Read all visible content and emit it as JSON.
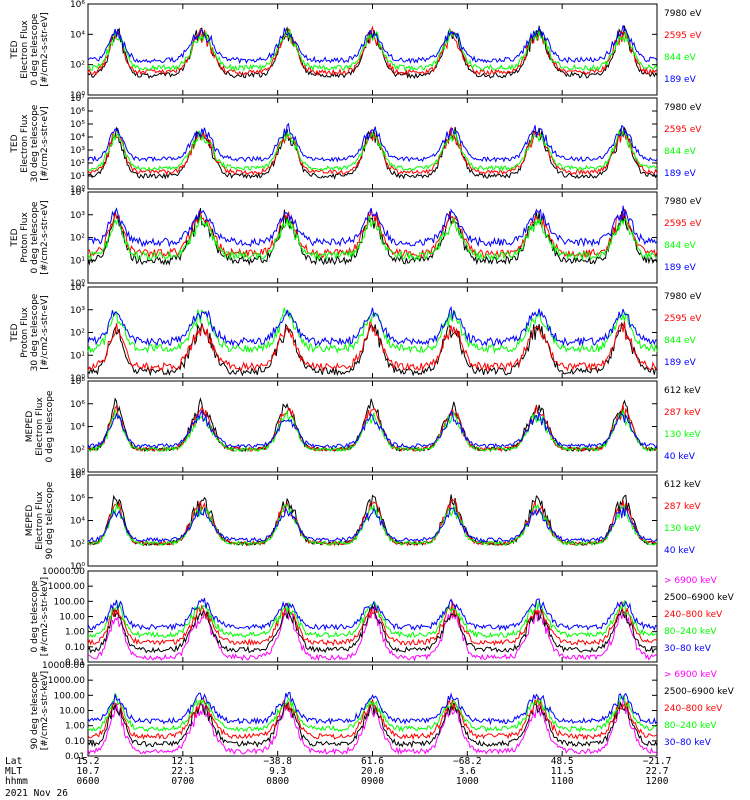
{
  "colors": {
    "black": "#000000",
    "red": "#ff0000",
    "green": "#00ff00",
    "blue": "#0000ff",
    "magenta": "#ff00ff"
  },
  "footer": {
    "row_labels": [
      "Lat",
      "MLT",
      "hhmm"
    ],
    "date": "2021 Nov 26",
    "ticks": [
      {
        "lat": "15.2",
        "mlt": "10.7",
        "time": "0600"
      },
      {
        "lat": "12.1",
        "mlt": "22.3",
        "time": "0700"
      },
      {
        "lat": "−38.8",
        "mlt": "9.3",
        "time": "0800"
      },
      {
        "lat": "61.6",
        "mlt": "20.0",
        "time": "0900"
      },
      {
        "lat": "−68.2",
        "mlt": "3.6",
        "time": "1000"
      },
      {
        "lat": "48.5",
        "mlt": "11.5",
        "time": "1100"
      },
      {
        "lat": "−21.7",
        "mlt": "22.7",
        "time": "1200"
      }
    ]
  },
  "chart_data": [
    {
      "type": "line",
      "ylabel": [
        "TED",
        "Electron Flux",
        "0 deg telescope",
        "[#/cm2-s-str-eV]"
      ],
      "yscale": "log",
      "ylim_exp": [
        0,
        6
      ],
      "ytick_labels": [
        "10⁰",
        "10²",
        "10⁴",
        "10⁶"
      ],
      "series": [
        {
          "name": "7980 eV",
          "color": "black",
          "baseline_exp": 1.3
        },
        {
          "name": "2595 eV",
          "color": "red",
          "baseline_exp": 1.5
        },
        {
          "name": "844 eV",
          "color": "green",
          "baseline_exp": 1.8
        },
        {
          "name": "189 eV",
          "color": "blue",
          "baseline_exp": 2.3
        }
      ]
    },
    {
      "type": "line",
      "ylabel": [
        "TED",
        "Electron Flux",
        "30 deg telescope",
        "[#/cm2-s-str-eV]"
      ],
      "yscale": "log",
      "ylim_exp": [
        0,
        7
      ],
      "ytick_labels": [
        "10⁰",
        "10¹",
        "10²",
        "10³",
        "10⁴",
        "10⁵",
        "10⁶",
        "10⁷"
      ],
      "series": [
        {
          "name": "7980 eV",
          "color": "black",
          "baseline_exp": 1.0
        },
        {
          "name": "2595 eV",
          "color": "red",
          "baseline_exp": 1.3
        },
        {
          "name": "844 eV",
          "color": "green",
          "baseline_exp": 1.6
        },
        {
          "name": "189 eV",
          "color": "blue",
          "baseline_exp": 2.3
        }
      ]
    },
    {
      "type": "line",
      "ylabel": [
        "TED",
        "Proton Flux",
        "0 deg telescope",
        "[#/cm2-s-str-eV]"
      ],
      "yscale": "log",
      "ylim_exp": [
        0,
        4
      ],
      "ytick_labels": [
        "10⁰",
        "10¹",
        "10²",
        "10³",
        "10⁴"
      ],
      "series": [
        {
          "name": "7980 eV",
          "color": "black",
          "baseline_exp": 1.0
        },
        {
          "name": "2595 eV",
          "color": "red",
          "baseline_exp": 1.3
        },
        {
          "name": "844 eV",
          "color": "green",
          "baseline_exp": 1.2
        },
        {
          "name": "189 eV",
          "color": "blue",
          "baseline_exp": 1.8
        }
      ]
    },
    {
      "type": "line",
      "ylabel": [
        "TED",
        "Proton Flux",
        "30 deg telescope",
        "[#/cm2-s-str-eV]"
      ],
      "yscale": "log",
      "ylim_exp": [
        0,
        4
      ],
      "ytick_labels": [
        "10⁰",
        "10¹",
        "10²",
        "10³",
        "10⁴"
      ],
      "series": [
        {
          "name": "7980 eV",
          "color": "black",
          "baseline_exp": 0.3
        },
        {
          "name": "2595 eV",
          "color": "red",
          "baseline_exp": 0.5
        },
        {
          "name": "844 eV",
          "color": "green",
          "baseline_exp": 1.3
        },
        {
          "name": "189 eV",
          "color": "blue",
          "baseline_exp": 1.6
        }
      ]
    },
    {
      "type": "line",
      "ylabel": [
        "MEPED",
        "Electron Flux",
        "0 deg telescope"
      ],
      "yscale": "log",
      "ylim_exp": [
        0,
        8
      ],
      "ytick_labels": [
        "10⁰",
        "10²",
        "10⁴",
        "10⁶",
        "10⁸"
      ],
      "series": [
        {
          "name": "612 keV",
          "color": "black",
          "baseline_exp": 2.0
        },
        {
          "name": "287 keV",
          "color": "red",
          "baseline_exp": 2.0
        },
        {
          "name": "130 keV",
          "color": "green",
          "baseline_exp": 2.0
        },
        {
          "name": "40 keV",
          "color": "blue",
          "baseline_exp": 2.3
        }
      ]
    },
    {
      "type": "line",
      "ylabel": [
        "MEPED",
        "Electron Flux",
        "90 deg telescope"
      ],
      "yscale": "log",
      "ylim_exp": [
        0,
        8
      ],
      "ytick_labels": [
        "10⁰",
        "10²",
        "10⁴",
        "10⁶",
        "10⁸"
      ],
      "series": [
        {
          "name": "612 keV",
          "color": "black",
          "baseline_exp": 2.0
        },
        {
          "name": "287 keV",
          "color": "red",
          "baseline_exp": 2.0
        },
        {
          "name": "130 keV",
          "color": "green",
          "baseline_exp": 2.0
        },
        {
          "name": "40 keV",
          "color": "blue",
          "baseline_exp": 2.3
        }
      ]
    },
    {
      "type": "line",
      "ylabel": [
        "0 deg telescope",
        "[#/cm2-s-str-keV]"
      ],
      "yscale": "log",
      "ylim_exp": [
        -2,
        4
      ],
      "ytick_labels": [
        "0.01",
        "0.10",
        "1.00",
        "10.00",
        "100.00",
        "1000.00",
        "10000.00"
      ],
      "series": [
        {
          "name": "> 6900 keV",
          "color": "magenta",
          "baseline_exp": -1.7
        },
        {
          "name": "2500–6900 keV",
          "color": "black",
          "baseline_exp": -1.2
        },
        {
          "name": "240–800 keV",
          "color": "red",
          "baseline_exp": -0.7
        },
        {
          "name": "80–240 keV",
          "color": "green",
          "baseline_exp": -0.2
        },
        {
          "name": "30–80 keV",
          "color": "blue",
          "baseline_exp": 0.3
        }
      ]
    },
    {
      "type": "line",
      "ylabel": [
        "90 deg telescope",
        "[#/cm2-s-str-keV]"
      ],
      "yscale": "log",
      "ylim_exp": [
        -2,
        4
      ],
      "ytick_labels": [
        "0.01",
        "0.10",
        "1.00",
        "10.00",
        "100.00",
        "1000.00",
        "10000.00"
      ],
      "series": [
        {
          "name": "> 6900 keV",
          "color": "magenta",
          "baseline_exp": -1.7
        },
        {
          "name": "2500–6900 keV",
          "color": "black",
          "baseline_exp": -1.2
        },
        {
          "name": "240–800 keV",
          "color": "red",
          "baseline_exp": -0.7
        },
        {
          "name": "80–240 keV",
          "color": "green",
          "baseline_exp": -0.2
        },
        {
          "name": "30–80 keV",
          "color": "blue",
          "baseline_exp": 0.3
        }
      ]
    }
  ]
}
